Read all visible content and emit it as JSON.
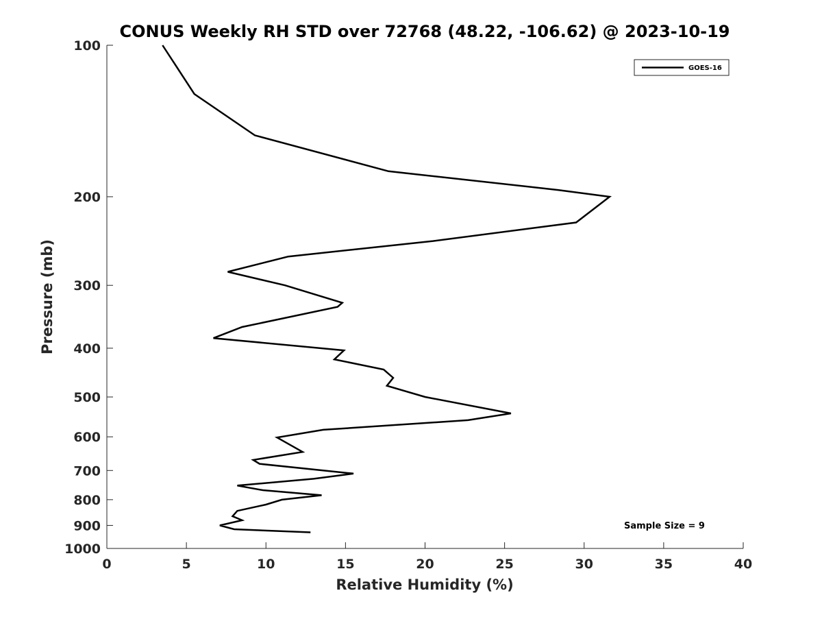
{
  "chart_data": {
    "type": "line",
    "title": "CONUS Weekly RH STD over 72768 (48.22, -106.62) @ 2023-10-19",
    "xlabel": "Relative Humidity (%)",
    "ylabel": "Pressure (mb)",
    "xlim": [
      0,
      40
    ],
    "ylim": [
      1000,
      100
    ],
    "yscale": "log",
    "y_reversed": true,
    "grid": false,
    "xticks": [
      0,
      5,
      10,
      15,
      20,
      25,
      30,
      35,
      40
    ],
    "yticks": [
      100,
      200,
      300,
      400,
      500,
      600,
      700,
      800,
      900,
      1000
    ],
    "legend": {
      "placement": "top-right",
      "entries": [
        "GOES-16"
      ]
    },
    "annotation": "Sample Size = 9",
    "series": [
      {
        "name": "GOES-16",
        "color": "#000000",
        "points": [
          [
            3.5,
            100
          ],
          [
            5.5,
            125
          ],
          [
            9.3,
            151
          ],
          [
            17.7,
            178
          ],
          [
            28.4,
            194
          ],
          [
            31.6,
            200
          ],
          [
            29.5,
            225
          ],
          [
            20.5,
            245
          ],
          [
            11.4,
            263
          ],
          [
            7.6,
            282
          ],
          [
            11.2,
            300
          ],
          [
            14.8,
            325
          ],
          [
            14.5,
            331
          ],
          [
            8.5,
            363
          ],
          [
            6.7,
            382
          ],
          [
            14.9,
            404
          ],
          [
            14.3,
            421
          ],
          [
            17.4,
            441
          ],
          [
            18.0,
            458
          ],
          [
            17.6,
            475
          ],
          [
            20.0,
            500
          ],
          [
            25.4,
            539
          ],
          [
            22.7,
            556
          ],
          [
            13.6,
            581
          ],
          [
            10.7,
            602
          ],
          [
            12.3,
            643
          ],
          [
            9.2,
            667
          ],
          [
            9.6,
            679
          ],
          [
            15.5,
            710
          ],
          [
            13.0,
            727
          ],
          [
            8.2,
            750
          ],
          [
            9.8,
            766
          ],
          [
            13.5,
            784
          ],
          [
            11.0,
            800
          ],
          [
            10.0,
            818
          ],
          [
            8.2,
            842
          ],
          [
            7.9,
            863
          ],
          [
            8.5,
            879
          ],
          [
            7.1,
            900
          ],
          [
            8.0,
            916
          ],
          [
            12.8,
            929
          ]
        ]
      }
    ]
  }
}
